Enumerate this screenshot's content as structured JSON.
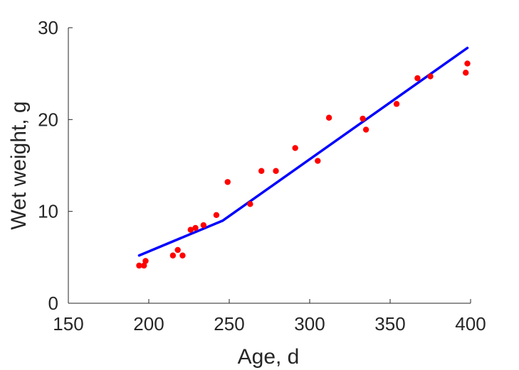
{
  "chart_data": {
    "type": "scatter",
    "xlabel": "Age, d",
    "ylabel": "Wet weight, g",
    "xlim": [
      150,
      400
    ],
    "ylim": [
      0,
      30
    ],
    "xticks": [
      150,
      200,
      250,
      300,
      350,
      400
    ],
    "yticks": [
      0,
      10,
      20,
      30
    ],
    "xtick_labels": [
      "150",
      "200",
      "250",
      "300",
      "350",
      "400"
    ],
    "ytick_labels": [
      "0",
      "10",
      "20",
      "30"
    ],
    "grid": false,
    "colors": {
      "points": "#ff0000",
      "line": "#0000ff",
      "axes": "#262626"
    },
    "series": [
      {
        "type": "scatter",
        "points": [
          [
            194,
            4.1
          ],
          [
            197,
            4.1
          ],
          [
            198,
            4.6
          ],
          [
            215,
            5.2
          ],
          [
            218,
            5.8
          ],
          [
            221,
            5.2
          ],
          [
            226,
            8.0
          ],
          [
            229,
            8.2
          ],
          [
            234,
            8.5
          ],
          [
            242,
            9.6
          ],
          [
            249,
            13.2
          ],
          [
            263,
            10.8
          ],
          [
            270,
            14.4
          ],
          [
            279,
            14.4
          ],
          [
            291,
            16.9
          ],
          [
            305,
            15.5
          ],
          [
            312,
            20.2
          ],
          [
            333,
            20.1
          ],
          [
            335,
            18.9
          ],
          [
            354,
            21.7
          ],
          [
            367,
            24.5
          ],
          [
            375,
            24.7
          ],
          [
            397,
            25.1
          ],
          [
            398,
            26.1
          ]
        ]
      },
      {
        "type": "line",
        "points": [
          [
            194,
            5.2
          ],
          [
            246,
            9.0
          ],
          [
            398,
            27.8
          ]
        ]
      }
    ]
  }
}
